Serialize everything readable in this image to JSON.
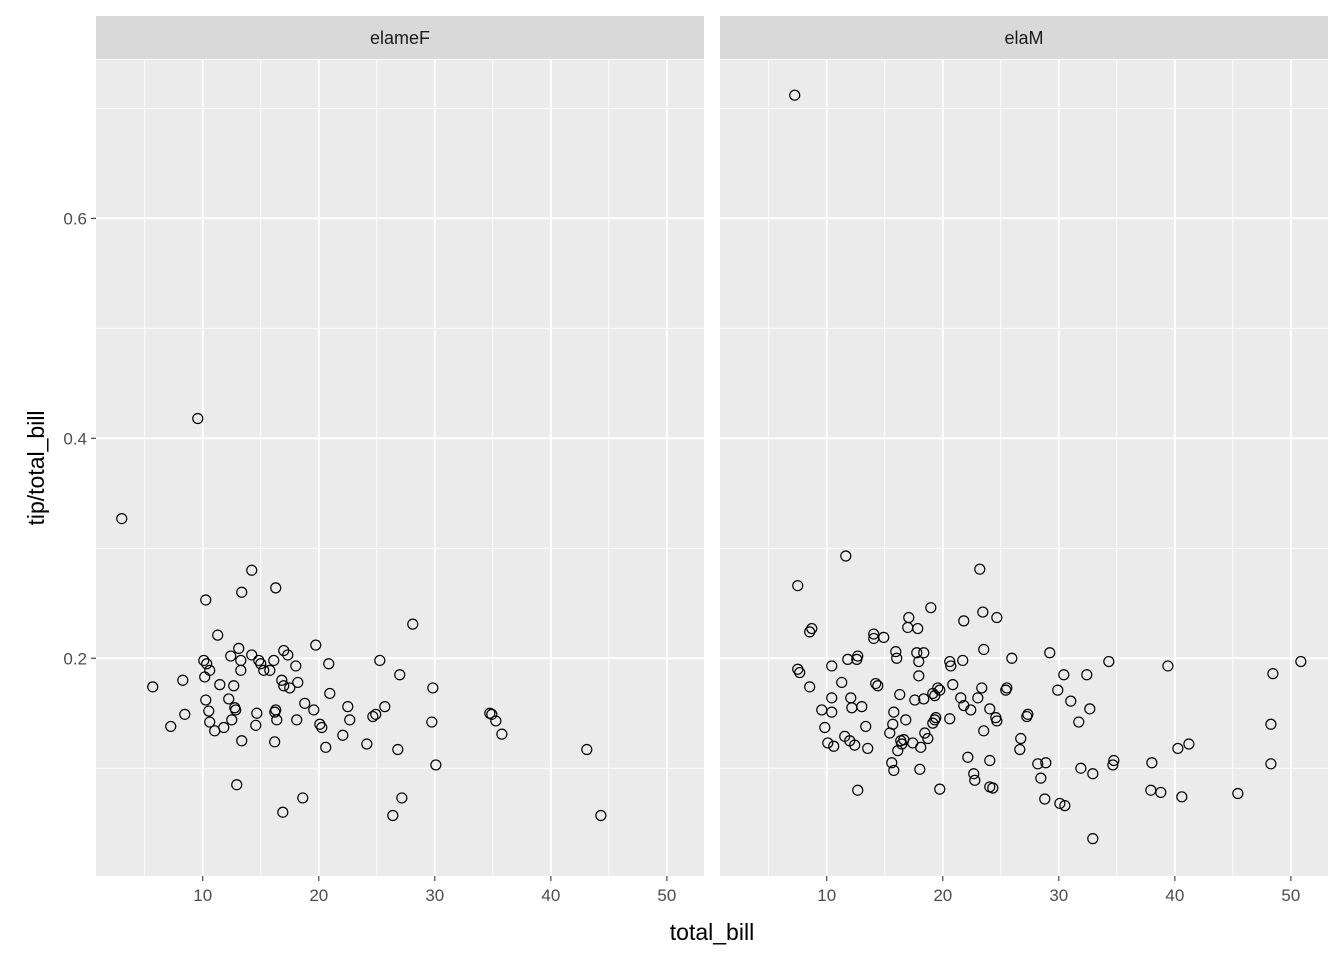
{
  "chart_data": {
    "type": "scatter",
    "xlabel": "total_bill",
    "ylabel": "tip/total_bill",
    "xlim": [
      0.8,
      53.2
    ],
    "ylim": [
      0.002,
      0.744
    ],
    "x_ticks": [
      10,
      20,
      30,
      40,
      50
    ],
    "x_tick_labels": [
      "10",
      "20",
      "30",
      "40",
      "50"
    ],
    "y_ticks": [
      0.2,
      0.4,
      0.6
    ],
    "y_tick_labels": [
      "0.2",
      "0.4",
      "0.6"
    ],
    "grid": true,
    "colors": {
      "panel": "#ebebeb",
      "strip": "#d9d9d9",
      "grid": "#ffffff",
      "point": "#000000"
    },
    "marker": "open-circle",
    "facets": [
      {
        "label": "elameF",
        "points": [
          [
            3.02,
            0.327
          ],
          [
            9.57,
            0.418
          ],
          [
            5.69,
            0.174
          ],
          [
            7.24,
            0.138
          ],
          [
            8.45,
            0.149
          ],
          [
            8.28,
            0.18
          ],
          [
            10.09,
            0.198
          ],
          [
            10.34,
            0.195
          ],
          [
            10.6,
            0.189
          ],
          [
            10.17,
            0.183
          ],
          [
            10.26,
            0.162
          ],
          [
            10.52,
            0.152
          ],
          [
            10.6,
            0.142
          ],
          [
            11.03,
            0.134
          ],
          [
            11.29,
            0.221
          ],
          [
            11.47,
            0.176
          ],
          [
            11.81,
            0.137
          ],
          [
            12.24,
            0.163
          ],
          [
            12.41,
            0.202
          ],
          [
            12.5,
            0.144
          ],
          [
            12.67,
            0.175
          ],
          [
            12.76,
            0.155
          ],
          [
            12.84,
            0.153
          ],
          [
            12.93,
            0.085
          ],
          [
            13.1,
            0.209
          ],
          [
            13.28,
            0.189
          ],
          [
            13.28,
            0.198
          ],
          [
            13.36,
            0.125
          ],
          [
            10.26,
            0.253
          ],
          [
            13.36,
            0.26
          ],
          [
            14.22,
            0.28
          ],
          [
            14.22,
            0.203
          ],
          [
            14.57,
            0.139
          ],
          [
            14.66,
            0.15
          ],
          [
            14.83,
            0.198
          ],
          [
            15.0,
            0.195
          ],
          [
            15.26,
            0.189
          ],
          [
            15.78,
            0.189
          ],
          [
            16.12,
            0.198
          ],
          [
            16.29,
            0.264
          ],
          [
            16.21,
            0.151
          ],
          [
            16.29,
            0.153
          ],
          [
            16.38,
            0.144
          ],
          [
            16.2,
            0.124
          ],
          [
            16.81,
            0.18
          ],
          [
            16.98,
            0.175
          ],
          [
            16.98,
            0.207
          ],
          [
            17.33,
            0.203
          ],
          [
            17.5,
            0.173
          ],
          [
            18.02,
            0.193
          ],
          [
            18.1,
            0.144
          ],
          [
            18.19,
            0.178
          ],
          [
            18.79,
            0.159
          ],
          [
            19.57,
            0.153
          ],
          [
            19.74,
            0.212
          ],
          [
            20.09,
            0.14
          ],
          [
            20.26,
            0.137
          ],
          [
            20.6,
            0.119
          ],
          [
            20.86,
            0.195
          ],
          [
            20.95,
            0.168
          ],
          [
            22.07,
            0.13
          ],
          [
            22.5,
            0.156
          ],
          [
            22.67,
            0.144
          ],
          [
            24.14,
            0.122
          ],
          [
            24.66,
            0.147
          ],
          [
            24.91,
            0.149
          ],
          [
            25.26,
            0.198
          ],
          [
            25.69,
            0.156
          ],
          [
            26.98,
            0.185
          ],
          [
            28.1,
            0.231
          ],
          [
            26.81,
            0.117
          ],
          [
            27.16,
            0.073
          ],
          [
            29.83,
            0.173
          ],
          [
            29.74,
            0.142
          ],
          [
            30.09,
            0.103
          ],
          [
            34.74,
            0.15
          ],
          [
            34.91,
            0.149
          ],
          [
            35.26,
            0.143
          ],
          [
            35.78,
            0.131
          ],
          [
            43.1,
            0.117
          ],
          [
            44.31,
            0.057
          ],
          [
            16.9,
            0.06
          ],
          [
            18.62,
            0.073
          ],
          [
            26.38,
            0.057
          ]
        ]
      },
      {
        "label": "elaM",
        "points": [
          [
            7.24,
            0.712
          ],
          [
            11.64,
            0.293
          ],
          [
            7.5,
            0.266
          ],
          [
            23.19,
            0.281
          ],
          [
            8.71,
            0.227
          ],
          [
            8.53,
            0.224
          ],
          [
            7.5,
            0.19
          ],
          [
            7.67,
            0.187
          ],
          [
            8.53,
            0.174
          ],
          [
            9.57,
            0.153
          ],
          [
            9.83,
            0.137
          ],
          [
            10.09,
            0.123
          ],
          [
            10.43,
            0.164
          ],
          [
            10.43,
            0.151
          ],
          [
            10.6,
            0.12
          ],
          [
            10.43,
            0.193
          ],
          [
            11.29,
            0.178
          ],
          [
            11.81,
            0.199
          ],
          [
            12.07,
            0.164
          ],
          [
            12.16,
            0.155
          ],
          [
            11.55,
            0.129
          ],
          [
            11.98,
            0.125
          ],
          [
            12.41,
            0.121
          ],
          [
            12.59,
            0.199
          ],
          [
            12.67,
            0.202
          ],
          [
            12.67,
            0.08
          ],
          [
            13.02,
            0.156
          ],
          [
            13.36,
            0.138
          ],
          [
            13.53,
            0.118
          ],
          [
            14.05,
            0.218
          ],
          [
            14.05,
            0.222
          ],
          [
            14.22,
            0.177
          ],
          [
            14.4,
            0.175
          ],
          [
            14.91,
            0.219
          ],
          [
            15.69,
            0.14
          ],
          [
            15.78,
            0.151
          ],
          [
            15.95,
            0.206
          ],
          [
            16.12,
            0.116
          ],
          [
            15.6,
            0.105
          ],
          [
            15.78,
            0.098
          ],
          [
            15.43,
            0.132
          ],
          [
            16.03,
            0.2
          ],
          [
            16.29,
            0.167
          ],
          [
            16.38,
            0.125
          ],
          [
            16.47,
            0.122
          ],
          [
            16.64,
            0.126
          ],
          [
            16.81,
            0.144
          ],
          [
            16.98,
            0.228
          ],
          [
            17.07,
            0.237
          ],
          [
            17.41,
            0.123
          ],
          [
            17.84,
            0.227
          ],
          [
            17.76,
            0.205
          ],
          [
            17.93,
            0.197
          ],
          [
            17.93,
            0.184
          ],
          [
            17.59,
            0.162
          ],
          [
            18.36,
            0.163
          ],
          [
            18.36,
            0.205
          ],
          [
            18.45,
            0.132
          ],
          [
            18.71,
            0.127
          ],
          [
            18.02,
            0.099
          ],
          [
            18.1,
            0.119
          ],
          [
            18.97,
            0.246
          ],
          [
            19.4,
            0.146
          ],
          [
            19.14,
            0.141
          ],
          [
            19.14,
            0.168
          ],
          [
            19.31,
            0.166
          ],
          [
            19.57,
            0.173
          ],
          [
            19.31,
            0.144
          ],
          [
            19.74,
            0.081
          ],
          [
            19.74,
            0.171
          ],
          [
            20.6,
            0.145
          ],
          [
            20.69,
            0.193
          ],
          [
            20.6,
            0.197
          ],
          [
            20.86,
            0.176
          ],
          [
            21.72,
            0.198
          ],
          [
            21.55,
            0.164
          ],
          [
            21.81,
            0.157
          ],
          [
            21.81,
            0.234
          ],
          [
            22.16,
            0.11
          ],
          [
            22.41,
            0.153
          ],
          [
            22.67,
            0.095
          ],
          [
            22.76,
            0.089
          ],
          [
            23.02,
            0.164
          ],
          [
            23.36,
            0.173
          ],
          [
            23.45,
            0.242
          ],
          [
            23.53,
            0.208
          ],
          [
            23.53,
            0.134
          ],
          [
            24.05,
            0.154
          ],
          [
            24.05,
            0.107
          ],
          [
            24.05,
            0.083
          ],
          [
            24.31,
            0.082
          ],
          [
            24.57,
            0.146
          ],
          [
            24.66,
            0.237
          ],
          [
            24.66,
            0.143
          ],
          [
            25.52,
            0.173
          ],
          [
            25.43,
            0.171
          ],
          [
            25.95,
            0.2
          ],
          [
            26.72,
            0.127
          ],
          [
            26.64,
            0.117
          ],
          [
            27.24,
            0.147
          ],
          [
            27.33,
            0.149
          ],
          [
            28.19,
            0.104
          ],
          [
            28.79,
            0.072
          ],
          [
            29.22,
            0.205
          ],
          [
            28.88,
            0.105
          ],
          [
            28.45,
            0.091
          ],
          [
            29.91,
            0.171
          ],
          [
            30.43,
            0.185
          ],
          [
            31.03,
            0.161
          ],
          [
            31.72,
            0.142
          ],
          [
            31.9,
            0.1
          ],
          [
            32.41,
            0.185
          ],
          [
            32.67,
            0.154
          ],
          [
            32.93,
            0.095
          ],
          [
            32.93,
            0.036
          ],
          [
            30.09,
            0.068
          ],
          [
            30.52,
            0.066
          ],
          [
            34.31,
            0.197
          ],
          [
            34.66,
            0.103
          ],
          [
            34.74,
            0.107
          ],
          [
            38.02,
            0.105
          ],
          [
            37.93,
            0.08
          ],
          [
            38.79,
            0.078
          ],
          [
            39.4,
            0.193
          ],
          [
            40.26,
            0.118
          ],
          [
            41.21,
            0.122
          ],
          [
            40.6,
            0.074
          ],
          [
            45.43,
            0.077
          ],
          [
            48.45,
            0.186
          ],
          [
            48.28,
            0.14
          ],
          [
            48.28,
            0.104
          ],
          [
            50.86,
            0.197
          ]
        ]
      }
    ]
  }
}
